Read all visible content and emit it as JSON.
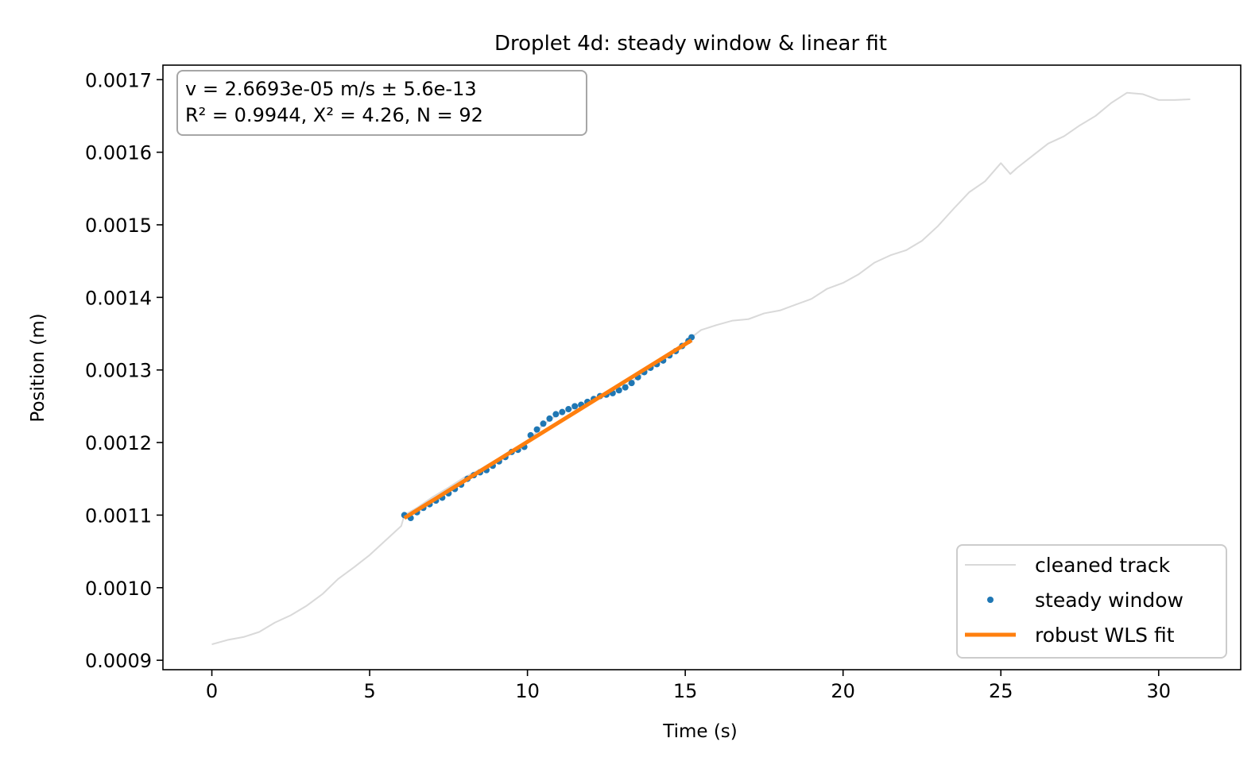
{
  "chart_data": {
    "type": "scatter",
    "title": "Droplet 4d: steady window & linear fit",
    "xlabel": "Time (s)",
    "ylabel": "Position (m)",
    "xlim": [
      -1.55,
      32.6
    ],
    "ylim": [
      0.000887,
      0.00172
    ],
    "xticks": [
      0,
      5,
      10,
      15,
      20,
      25,
      30
    ],
    "xtick_labels": [
      "0",
      "5",
      "10",
      "15",
      "20",
      "25",
      "30"
    ],
    "yticks": [
      0.0009,
      0.001,
      0.0011,
      0.0012,
      0.0013,
      0.0014,
      0.0015,
      0.0016,
      0.0017
    ],
    "ytick_labels": [
      "0.0009",
      "0.0010",
      "0.0011",
      "0.0012",
      "0.0013",
      "0.0014",
      "0.0015",
      "0.0016",
      "0.0017"
    ],
    "grid": false,
    "legend_position": "lower-right",
    "annotation": [
      "v = 2.6693e-05 m/s ± 5.6e-13",
      "R² = 0.9944,  X² = 4.26,  N = 92"
    ],
    "series": [
      {
        "name": "cleaned track",
        "kind": "line",
        "color": "#d9d9d9",
        "points": [
          [
            0.0,
            0.000922
          ],
          [
            0.5,
            0.000928
          ],
          [
            1.0,
            0.000932
          ],
          [
            1.5,
            0.000939
          ],
          [
            2.0,
            0.000952
          ],
          [
            2.5,
            0.000962
          ],
          [
            3.0,
            0.000975
          ],
          [
            3.5,
            0.000991
          ],
          [
            4.0,
            0.001012
          ],
          [
            4.5,
            0.001028
          ],
          [
            5.0,
            0.001045
          ],
          [
            5.5,
            0.001065
          ],
          [
            6.0,
            0.001085
          ],
          [
            6.1,
            0.0011
          ],
          [
            6.5,
            0.00111
          ],
          [
            7.0,
            0.001125
          ],
          [
            7.5,
            0.001138
          ],
          [
            8.0,
            0.001152
          ],
          [
            8.5,
            0.001163
          ],
          [
            9.0,
            0.001176
          ],
          [
            9.5,
            0.001188
          ],
          [
            10.0,
            0.0012
          ],
          [
            10.5,
            0.001225
          ],
          [
            11.0,
            0.00124
          ],
          [
            11.5,
            0.001248
          ],
          [
            12.0,
            0.001258
          ],
          [
            12.5,
            0.001265
          ],
          [
            13.0,
            0.001275
          ],
          [
            13.5,
            0.00129
          ],
          [
            14.0,
            0.001305
          ],
          [
            14.5,
            0.00132
          ],
          [
            15.0,
            0.001335
          ],
          [
            15.2,
            0.001345
          ],
          [
            15.5,
            0.001355
          ],
          [
            16.0,
            0.001362
          ],
          [
            16.5,
            0.001368
          ],
          [
            17.0,
            0.00137
          ],
          [
            17.5,
            0.001378
          ],
          [
            18.0,
            0.001382
          ],
          [
            18.5,
            0.00139
          ],
          [
            19.0,
            0.001398
          ],
          [
            19.5,
            0.001412
          ],
          [
            20.0,
            0.00142
          ],
          [
            20.5,
            0.001432
          ],
          [
            21.0,
            0.001448
          ],
          [
            21.5,
            0.001458
          ],
          [
            22.0,
            0.001465
          ],
          [
            22.5,
            0.001478
          ],
          [
            23.0,
            0.001498
          ],
          [
            23.5,
            0.001522
          ],
          [
            24.0,
            0.001545
          ],
          [
            24.5,
            0.00156
          ],
          [
            25.0,
            0.001585
          ],
          [
            25.3,
            0.00157
          ],
          [
            25.5,
            0.001578
          ],
          [
            26.0,
            0.001595
          ],
          [
            26.5,
            0.001612
          ],
          [
            27.0,
            0.001622
          ],
          [
            27.5,
            0.001637
          ],
          [
            28.0,
            0.00165
          ],
          [
            28.5,
            0.001668
          ],
          [
            29.0,
            0.001682
          ],
          [
            29.5,
            0.00168
          ],
          [
            30.0,
            0.001672
          ],
          [
            30.5,
            0.001672
          ],
          [
            31.0,
            0.001673
          ]
        ]
      },
      {
        "name": "steady window",
        "kind": "scatter",
        "color": "#1f77b4",
        "points": [
          [
            6.1,
            0.0011
          ],
          [
            6.3,
            0.001096
          ],
          [
            6.5,
            0.001104
          ],
          [
            6.7,
            0.00111
          ],
          [
            6.9,
            0.001115
          ],
          [
            7.1,
            0.00112
          ],
          [
            7.3,
            0.001124
          ],
          [
            7.5,
            0.00113
          ],
          [
            7.7,
            0.001136
          ],
          [
            7.9,
            0.001142
          ],
          [
            8.1,
            0.00115
          ],
          [
            8.3,
            0.001155
          ],
          [
            8.5,
            0.001159
          ],
          [
            8.7,
            0.001162
          ],
          [
            8.9,
            0.001168
          ],
          [
            9.1,
            0.001174
          ],
          [
            9.3,
            0.00118
          ],
          [
            9.5,
            0.001187
          ],
          [
            9.7,
            0.00119
          ],
          [
            9.9,
            0.001194
          ],
          [
            10.1,
            0.00121
          ],
          [
            10.3,
            0.001218
          ],
          [
            10.5,
            0.001226
          ],
          [
            10.7,
            0.001233
          ],
          [
            10.9,
            0.001239
          ],
          [
            11.1,
            0.001242
          ],
          [
            11.3,
            0.001246
          ],
          [
            11.5,
            0.00125
          ],
          [
            11.7,
            0.001252
          ],
          [
            11.9,
            0.001256
          ],
          [
            12.1,
            0.00126
          ],
          [
            12.3,
            0.001264
          ],
          [
            12.5,
            0.001266
          ],
          [
            12.7,
            0.001268
          ],
          [
            12.9,
            0.001272
          ],
          [
            13.1,
            0.001276
          ],
          [
            13.3,
            0.001282
          ],
          [
            13.5,
            0.00129
          ],
          [
            13.7,
            0.001297
          ],
          [
            13.9,
            0.001303
          ],
          [
            14.1,
            0.001308
          ],
          [
            14.3,
            0.001313
          ],
          [
            14.5,
            0.00132
          ],
          [
            14.7,
            0.001326
          ],
          [
            14.9,
            0.001333
          ],
          [
            15.1,
            0.00134
          ],
          [
            15.2,
            0.001345
          ]
        ]
      },
      {
        "name": "robust WLS fit",
        "kind": "line",
        "color": "#ff7f0e",
        "points": [
          [
            6.1,
            0.001096
          ],
          [
            15.2,
            0.001341
          ]
        ]
      }
    ]
  }
}
